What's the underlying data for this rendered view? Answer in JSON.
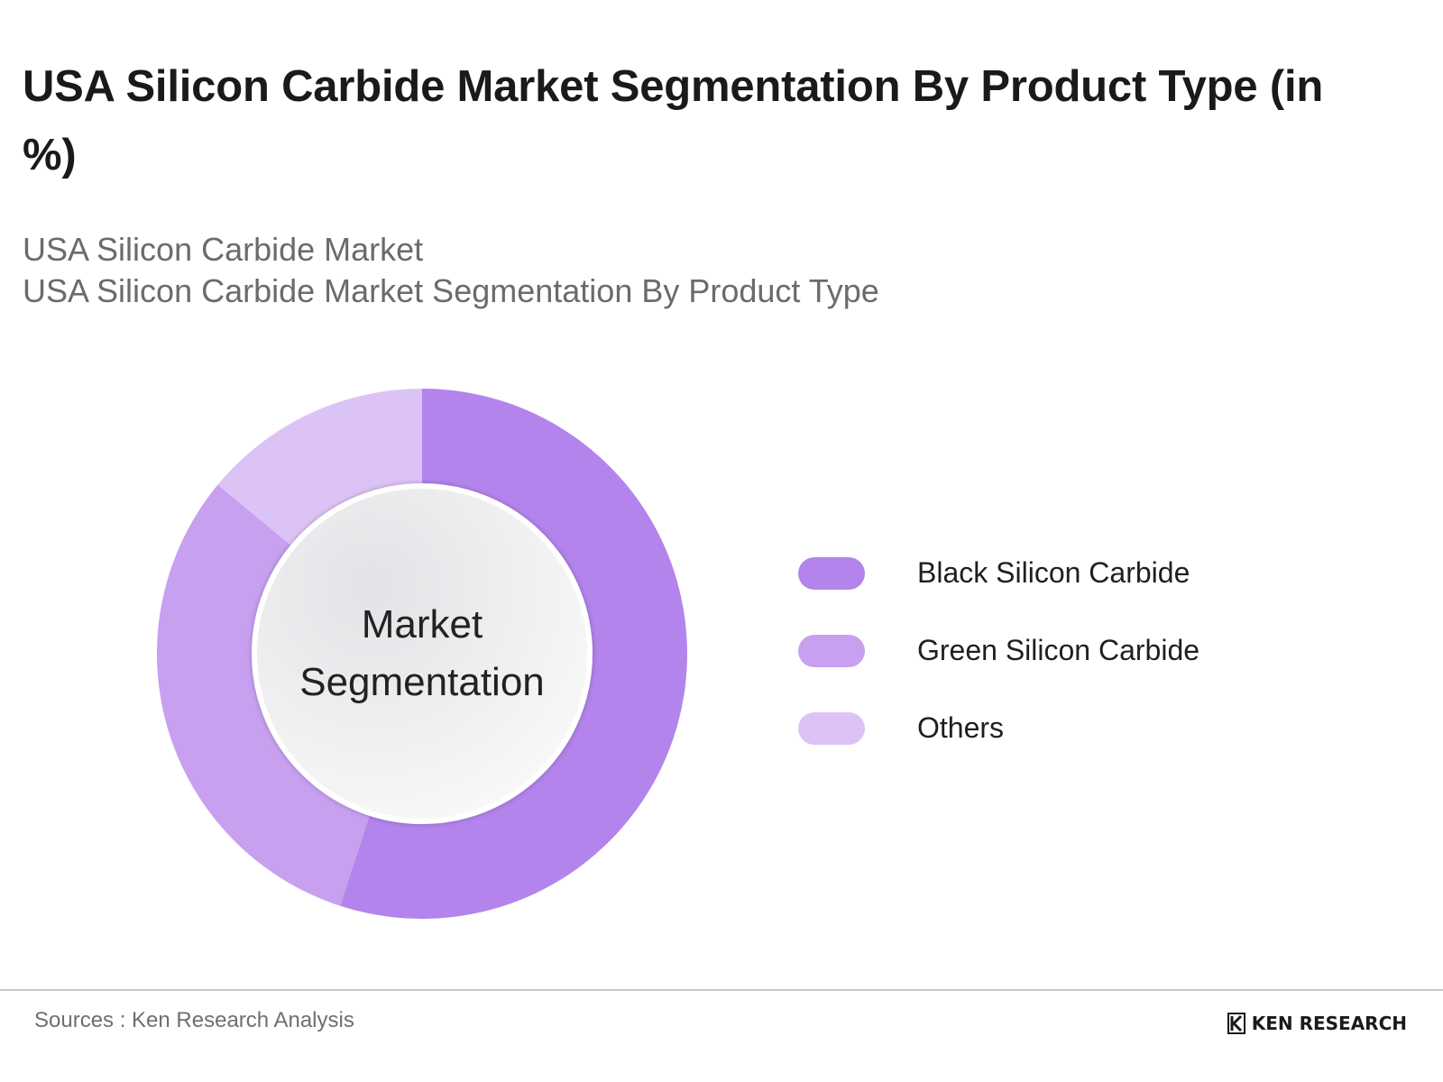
{
  "header": {
    "title": "USA Silicon Carbide Market Segmentation By Product Type (in %)",
    "subtitle_line1": "USA Silicon Carbide Market",
    "subtitle_line2": "USA Silicon Carbide Market Segmentation By Product Type"
  },
  "chart_data": {
    "type": "pie",
    "style": "donut",
    "title": "USA Silicon Carbide Market Segmentation By Product Type (in %)",
    "center_label_line1": "Market",
    "center_label_line2": "Segmentation",
    "legend_placement": "right",
    "series": [
      {
        "name": "Black Silicon Carbide",
        "value": 55,
        "color": "#b384ec"
      },
      {
        "name": "Green Silicon Carbide",
        "value": 31,
        "color": "#c7a0ef"
      },
      {
        "name": "Others",
        "value": 14,
        "color": "#dcc3f6"
      }
    ]
  },
  "footer": {
    "source": "Sources : Ken Research Analysis",
    "brand": "KEN RESEARCH"
  }
}
